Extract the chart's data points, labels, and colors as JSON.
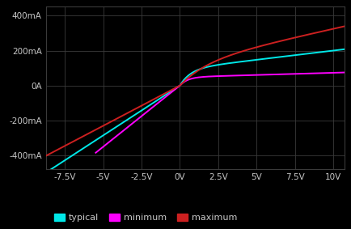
{
  "bg_color": "#000000",
  "grid_color": "#3a3a3a",
  "text_color": "#c8c8c8",
  "xlim": [
    -8.75,
    10.75
  ],
  "ylim": [
    -480,
    450
  ],
  "xticks": [
    -7.5,
    -5.0,
    -2.5,
    0.0,
    2.5,
    5.0,
    7.5,
    10.0
  ],
  "yticks": [
    -400,
    -200,
    0,
    200,
    400
  ],
  "xticklabels": [
    "-7.5V",
    "-5V",
    "-2.5V",
    "0V",
    "2.5V",
    "5V",
    "7.5V",
    "10V"
  ],
  "yticklabels": [
    "-400mA",
    "-200mA",
    "0A",
    "200mA",
    "400mA"
  ],
  "typical_color": "#00e8e8",
  "minimum_color": "#ff00ff",
  "maximum_color": "#cc2020",
  "line_width": 1.4,
  "legend_labels": [
    "typical",
    "minimum",
    "maximum"
  ]
}
